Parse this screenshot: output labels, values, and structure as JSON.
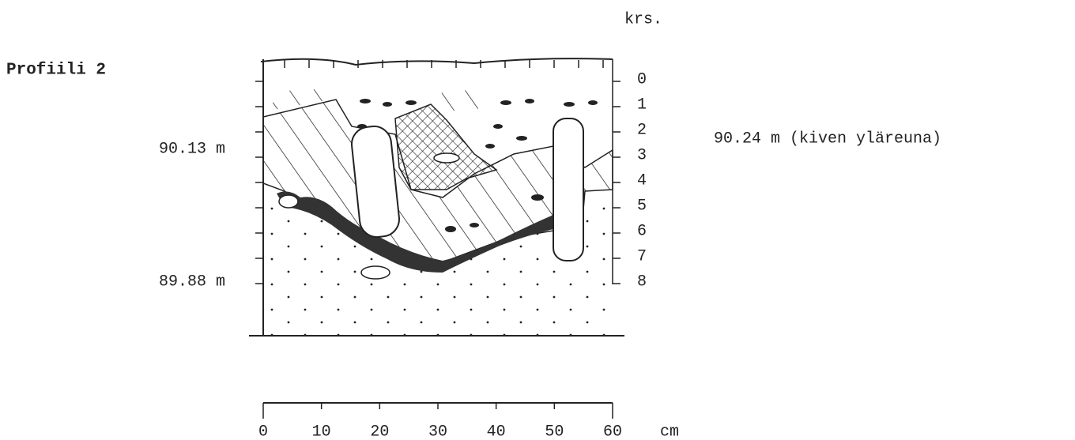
{
  "title": "Profiili 2",
  "layer_heading": "krs.",
  "elevations": [
    "90.13 m",
    "89.88 m"
  ],
  "layers": [
    "0",
    "1",
    "2",
    "3",
    "4",
    "5",
    "6",
    "7",
    "8"
  ],
  "stone_note": "90.24 m (kiven yläreuna)",
  "scale": {
    "labels": [
      "0",
      "10",
      "20",
      "30",
      "40",
      "50",
      "60"
    ],
    "unit": "cm"
  }
}
